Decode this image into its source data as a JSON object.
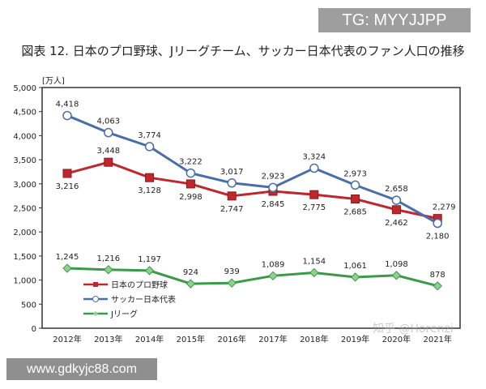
{
  "overlay": {
    "tg_label": "TG: MYYJJPP",
    "site_label": "www.gdkyjc88.com",
    "watermark": "知乎 @Horenzi"
  },
  "chart_data": {
    "type": "line",
    "title": "図表 12.  日本のプロ野球、Jリーグチーム、サッカー日本代表のファン人口の推移",
    "ylabel": "[万人]",
    "xlabel": "",
    "ylim": [
      0,
      5000
    ],
    "yticks": [
      "0",
      "500",
      "1,000",
      "1,500",
      "2,000",
      "2,500",
      "3,000",
      "3,500",
      "4,000",
      "4,500",
      "5,000"
    ],
    "categories": [
      "2012年",
      "2013年",
      "2014年",
      "2015年",
      "2016年",
      "2017年",
      "2018年",
      "2019年",
      "2020年",
      "2021年"
    ],
    "grid": false,
    "legend": "left-lower",
    "series": [
      {
        "name": "日本のプロ野球",
        "color": "#c0272d",
        "marker": "square",
        "values": [
          3216,
          3448,
          3128,
          2998,
          2747,
          2845,
          2775,
          2685,
          2462,
          2279
        ],
        "labels": [
          "3,216",
          "3,448",
          "3,128",
          "2,998",
          "2,747",
          "2,845",
          "2,775",
          "2,685",
          "2,462",
          "2,279"
        ]
      },
      {
        "name": "サッカー日本代表",
        "color": "#4a6ea9",
        "marker": "circle",
        "values": [
          4418,
          4063,
          3774,
          3222,
          3017,
          2923,
          3324,
          2973,
          2658,
          2180
        ],
        "labels": [
          "4,418",
          "4,063",
          "3,774",
          "3,222",
          "3,017",
          "2,923",
          "3,324",
          "2,973",
          "2,658",
          "2,180"
        ]
      },
      {
        "name": "Jリーグ",
        "color": "#3a9a4a",
        "marker": "diamond",
        "values": [
          1245,
          1216,
          1197,
          924,
          939,
          1089,
          1154,
          1061,
          1098,
          878
        ],
        "labels": [
          "1,245",
          "1,216",
          "1,197",
          "924",
          "939",
          "1,089",
          "1,154",
          "1,061",
          "1,098",
          "878"
        ]
      }
    ]
  }
}
